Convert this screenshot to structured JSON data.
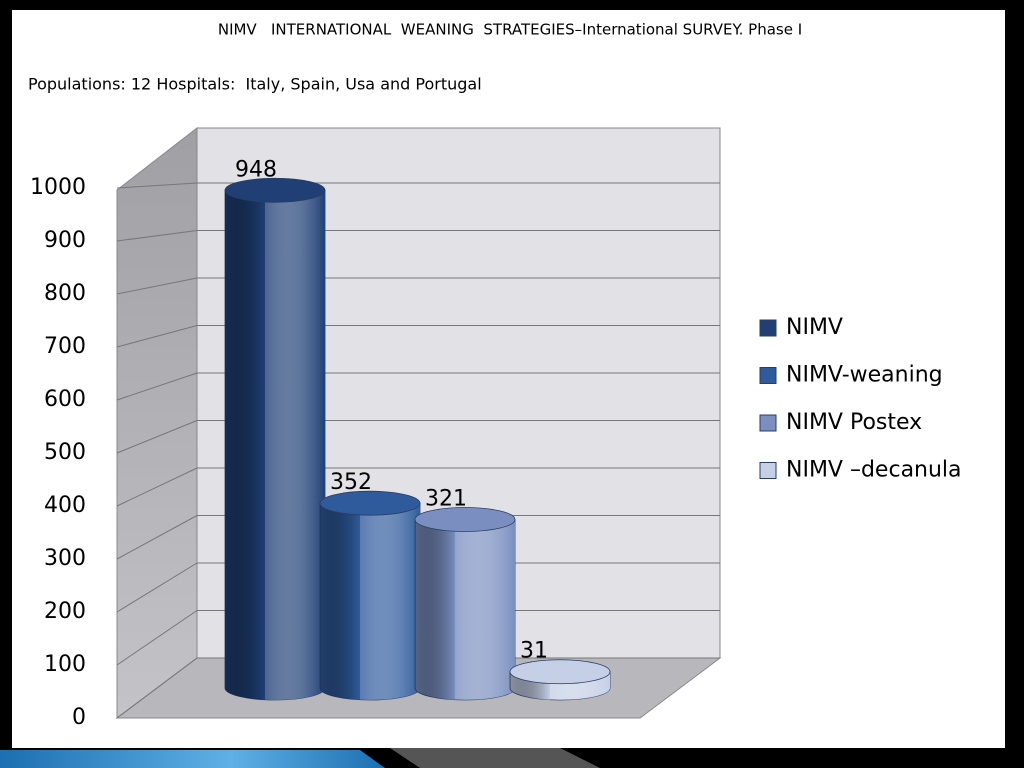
{
  "chart_data": {
    "type": "bar",
    "three_d": true,
    "title": "NIMV   INTERNATIONAL  WEANING  STRATEGIES–International SURVEY. Phase I",
    "subtitle": "Populations: 12 Hospitals:  Italy, Spain, Usa and Portugal",
    "series": [
      {
        "name": "NIMV",
        "color": "#1f3f75",
        "values": [
          948
        ]
      },
      {
        "name": "NIMV-weaning",
        "color": "#2f5b9c",
        "values": [
          352
        ]
      },
      {
        "name": "NIMV Postex",
        "color": "#7a8fc0",
        "values": [
          321
        ]
      },
      {
        "name": "NIMV –decanula",
        "color": "#c5cfe6",
        "values": [
          31
        ]
      }
    ],
    "ylim": [
      0,
      1000
    ],
    "yticks": [
      0,
      100,
      200,
      300,
      400,
      500,
      600,
      700,
      800,
      900,
      1000
    ],
    "grid": true,
    "legend": "right"
  }
}
